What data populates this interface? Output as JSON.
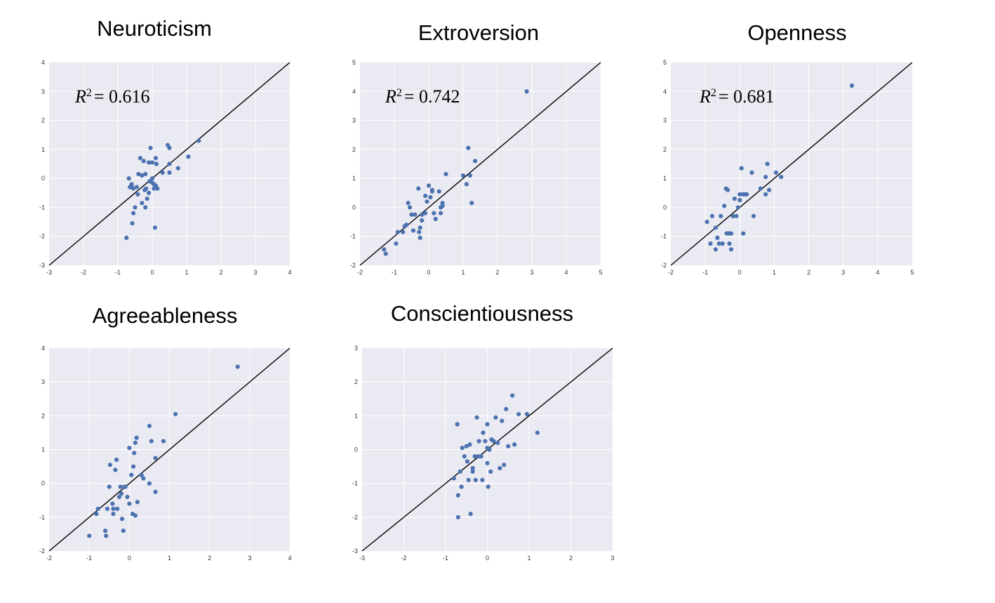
{
  "chart_data": [
    {
      "type": "scatter",
      "title": "Neuroticism",
      "annotation": {
        "label": "R",
        "power": "2",
        "value": "= 0.616"
      },
      "xlim": [
        -3,
        4
      ],
      "ylim": [
        -3,
        4
      ],
      "xticks": [
        "-3",
        "-2",
        "-1",
        "0",
        "1",
        "2",
        "3",
        "4"
      ],
      "yticks": [
        "-3",
        "-2",
        "-1",
        "0",
        "1",
        "2",
        "3",
        "4"
      ],
      "reference_line": "y = x",
      "grid": true,
      "point_color": "#4c72b0",
      "x": [
        -0.75,
        -0.68,
        -0.65,
        -0.6,
        -0.6,
        -0.58,
        -0.55,
        -0.5,
        -0.45,
        -0.4,
        -0.35,
        -0.3,
        -0.3,
        -0.25,
        -0.22,
        -0.2,
        -0.2,
        -0.18,
        -0.15,
        -0.1,
        -0.1,
        -0.08,
        -0.05,
        0.0,
        0.0,
        0.05,
        0.05,
        0.08,
        0.1,
        0.1,
        0.12,
        0.15,
        0.3,
        0.45,
        0.5,
        0.5,
        0.5,
        0.75,
        1.05,
        1.35,
        -0.6,
        -0.55,
        -0.42,
        0.0
      ],
      "y": [
        -2.05,
        0.0,
        -0.3,
        -0.2,
        -0.3,
        -1.55,
        -1.2,
        -1.0,
        -0.3,
        0.15,
        0.7,
        -0.85,
        0.1,
        0.6,
        -0.4,
        -1.0,
        0.15,
        -0.35,
        -0.7,
        -0.5,
        0.55,
        -0.1,
        1.05,
        0.0,
        0.55,
        -0.35,
        -0.2,
        -1.7,
        0.7,
        -0.25,
        0.5,
        -0.35,
        0.2,
        1.15,
        1.05,
        0.2,
        0.5,
        0.35,
        0.75,
        1.3,
        -0.3,
        -0.35,
        -0.55,
        -0.15
      ]
    },
    {
      "type": "scatter",
      "title": "Extroversion",
      "annotation": {
        "label": "R",
        "power": "2",
        "value": "= 0.742"
      },
      "xlim": [
        -2,
        5
      ],
      "ylim": [
        -2,
        5
      ],
      "xticks": [
        "-2",
        "-1",
        "0",
        "1",
        "2",
        "3",
        "4",
        "5"
      ],
      "yticks": [
        "-2",
        "-1",
        "0",
        "1",
        "2",
        "3",
        "4",
        "5"
      ],
      "reference_line": "y = x",
      "grid": true,
      "point_color": "#4c72b0",
      "x": [
        -1.3,
        -1.25,
        -0.95,
        -0.9,
        -0.7,
        -0.65,
        -0.6,
        -0.55,
        -0.5,
        -0.45,
        -0.4,
        -0.3,
        -0.28,
        -0.25,
        -0.25,
        -0.2,
        -0.2,
        -0.1,
        -0.05,
        0.0,
        0.05,
        0.1,
        0.1,
        0.15,
        0.2,
        0.3,
        0.35,
        0.35,
        0.4,
        0.4,
        0.5,
        1.0,
        1.1,
        1.15,
        1.2,
        1.25,
        1.35,
        2.85,
        -0.75,
        -0.1
      ],
      "y": [
        -1.45,
        -1.6,
        -1.25,
        -0.85,
        -0.65,
        -0.6,
        0.15,
        0.0,
        -0.25,
        -0.8,
        -0.25,
        0.65,
        -0.85,
        -0.7,
        -1.05,
        -0.25,
        -0.45,
        0.4,
        0.2,
        0.75,
        0.35,
        0.6,
        0.55,
        -0.2,
        -0.4,
        0.55,
        0.0,
        -0.2,
        0.15,
        0.05,
        1.15,
        1.1,
        0.8,
        2.05,
        1.1,
        0.15,
        1.6,
        4.0,
        -0.85,
        -0.2
      ]
    },
    {
      "type": "scatter",
      "title": "Openness",
      "annotation": {
        "label": "R",
        "power": "2",
        "value": "= 0.681"
      },
      "xlim": [
        -2,
        5
      ],
      "ylim": [
        -2,
        5
      ],
      "xticks": [
        "-2",
        "-1",
        "0",
        "1",
        "2",
        "3",
        "4",
        "5"
      ],
      "yticks": [
        "-2",
        "-1",
        "0",
        "1",
        "2",
        "3",
        "4",
        "5"
      ],
      "reference_line": "y = x",
      "grid": true,
      "point_color": "#4c72b0",
      "x": [
        -0.95,
        -0.85,
        -0.8,
        -0.7,
        -0.7,
        -0.65,
        -0.6,
        -0.55,
        -0.5,
        -0.45,
        -0.4,
        -0.38,
        -0.35,
        -0.3,
        -0.3,
        -0.25,
        -0.25,
        -0.2,
        -0.15,
        -0.1,
        -0.05,
        0.0,
        0.05,
        0.1,
        0.1,
        0.15,
        0.2,
        0.35,
        0.4,
        0.6,
        0.75,
        0.75,
        0.8,
        0.85,
        1.05,
        1.2,
        3.25,
        -0.65,
        -0.35,
        0.0
      ],
      "y": [
        -0.5,
        -1.25,
        -0.3,
        -0.7,
        -1.45,
        -1.05,
        -1.25,
        -0.3,
        -1.25,
        0.05,
        0.65,
        -0.9,
        0.6,
        -1.25,
        -0.9,
        -1.45,
        -0.9,
        -0.3,
        0.3,
        -0.3,
        0.0,
        0.25,
        1.35,
        0.45,
        -0.9,
        0.45,
        0.45,
        1.2,
        -0.3,
        0.65,
        0.45,
        1.05,
        1.5,
        0.6,
        1.2,
        1.05,
        4.2,
        -1.05,
        -0.9,
        0.45
      ]
    },
    {
      "type": "scatter",
      "title": "Agreeableness",
      "xlim": [
        -2,
        4
      ],
      "ylim": [
        -2,
        4
      ],
      "xticks": [
        "-2",
        "-1",
        "0",
        "1",
        "2",
        "3",
        "4"
      ],
      "yticks": [
        "-2",
        "-1",
        "0",
        "1",
        "2",
        "3",
        "4"
      ],
      "reference_line": "y = x",
      "grid": true,
      "point_color": "#4c72b0",
      "x": [
        -1.0,
        -0.82,
        -0.78,
        -0.6,
        -0.58,
        -0.55,
        -0.5,
        -0.48,
        -0.42,
        -0.4,
        -0.35,
        -0.32,
        -0.3,
        -0.25,
        -0.22,
        -0.2,
        -0.18,
        -0.15,
        -0.12,
        -0.1,
        -0.05,
        0.0,
        0.05,
        0.08,
        0.1,
        0.12,
        0.15,
        0.15,
        0.18,
        0.2,
        0.3,
        0.35,
        0.5,
        0.5,
        0.55,
        0.65,
        0.65,
        0.85,
        1.15,
        2.7,
        -0.4,
        0.0
      ],
      "y": [
        -1.55,
        -0.9,
        -0.75,
        -1.4,
        -1.55,
        -0.75,
        -0.1,
        0.55,
        -0.6,
        -0.9,
        0.4,
        0.7,
        -0.75,
        -0.4,
        -0.1,
        -0.3,
        -1.05,
        -1.4,
        -0.1,
        -0.1,
        -0.4,
        1.05,
        0.25,
        -0.9,
        0.5,
        0.9,
        1.2,
        -0.95,
        1.35,
        -0.55,
        0.25,
        0.15,
        1.7,
        0.0,
        1.25,
        0.75,
        -0.25,
        1.25,
        2.05,
        3.45,
        -0.75,
        -0.6
      ]
    },
    {
      "type": "scatter",
      "title": "Conscientiousness",
      "xlim": [
        -3,
        3
      ],
      "ylim": [
        -3,
        3
      ],
      "xticks": [
        "-3",
        "-2",
        "-1",
        "0",
        "1",
        "2",
        "3"
      ],
      "yticks": [
        "-3",
        "-2",
        "-1",
        "0",
        "1",
        "2",
        "3"
      ],
      "reference_line": "y = x",
      "grid": true,
      "point_color": "#4c72b0",
      "x": [
        -0.8,
        -0.72,
        -0.7,
        -0.7,
        -0.65,
        -0.62,
        -0.6,
        -0.55,
        -0.5,
        -0.48,
        -0.45,
        -0.42,
        -0.4,
        -0.35,
        -0.3,
        -0.28,
        -0.25,
        -0.22,
        -0.2,
        -0.15,
        -0.12,
        -0.1,
        -0.05,
        0.0,
        0.0,
        0.02,
        0.05,
        0.08,
        0.1,
        0.15,
        0.2,
        0.25,
        0.3,
        0.35,
        0.4,
        0.45,
        0.5,
        0.6,
        0.65,
        0.75,
        0.95,
        1.2,
        -0.35,
        0.0
      ],
      "y": [
        -0.85,
        0.75,
        -2.0,
        -1.35,
        -0.65,
        -1.1,
        0.05,
        -0.2,
        0.1,
        -0.35,
        -0.9,
        0.15,
        -1.9,
        -0.65,
        -0.2,
        -0.9,
        0.95,
        -0.2,
        0.25,
        -0.2,
        -0.9,
        0.5,
        0.25,
        0.75,
        -0.4,
        -1.1,
        0.0,
        -0.65,
        0.3,
        0.25,
        0.95,
        0.2,
        -0.55,
        0.85,
        -0.45,
        1.2,
        0.1,
        1.6,
        0.15,
        1.05,
        1.05,
        0.5,
        -0.55,
        0.05
      ]
    }
  ]
}
